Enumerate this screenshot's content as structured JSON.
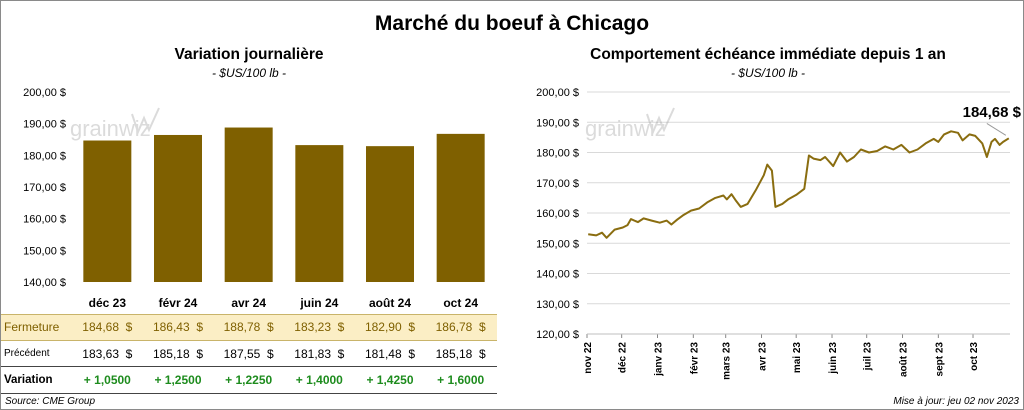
{
  "title": "Marché du boeuf à Chicago",
  "left": {
    "title": "Variation journalière",
    "unit": "- $US/100 lb -"
  },
  "right": {
    "title": "Comportement échéance immédiate depuis 1 an",
    "unit": "- $US/100 lb -",
    "last_label": "184,68 $"
  },
  "watermark": "grainwiz",
  "footer": {
    "source": "Source: CME Group",
    "updated": "Mise à jour: jeu 02 nov 2023"
  },
  "table": {
    "row_labels": [
      "Fermeture",
      "Précédent",
      "Variation"
    ],
    "fermeture": [
      "184,68",
      "186,43",
      "188,78",
      "183,23",
      "182,90",
      "186,78"
    ],
    "precedent": [
      "183,63",
      "185,18",
      "187,55",
      "181,83",
      "181,48",
      "185,18"
    ],
    "variation": [
      "+ 1,0500",
      "+ 1,2500",
      "+ 1,2250",
      "+ 1,4000",
      "+ 1,4250",
      "+ 1,6000"
    ],
    "currency": "$"
  },
  "colors": {
    "bar": "#7f6000",
    "line": "#8a6d10",
    "highlight_row": "#fbeec5",
    "positive": "#1e8c1e"
  },
  "chart_data": [
    {
      "type": "bar",
      "title": "Variation journalière",
      "categories": [
        "déc 23",
        "févr 24",
        "avr 24",
        "juin 24",
        "août 24",
        "oct 24"
      ],
      "values": [
        184.68,
        186.43,
        188.78,
        183.23,
        182.9,
        186.78
      ],
      "ylim": [
        140,
        200
      ],
      "yticks": [
        "140,00 $",
        "150,00 $",
        "160,00 $",
        "170,00 $",
        "180,00 $",
        "190,00 $",
        "200,00 $"
      ],
      "grid": false
    },
    {
      "type": "line",
      "title": "Comportement échéance immédiate depuis 1 an",
      "ylim": [
        120,
        200
      ],
      "yticks": [
        "120,00 $",
        "130,00 $",
        "140,00 $",
        "150,00 $",
        "160,00 $",
        "170,00 $",
        "180,00 $",
        "190,00 $",
        "200,00 $"
      ],
      "xticks": [
        "nov 22",
        "déc 22",
        "janv 23",
        "févr 23",
        "mars 23",
        "avr 23",
        "mai 23",
        "juin 23",
        "juil 23",
        "août 23",
        "sept 23",
        "oct 23"
      ],
      "grid": true,
      "series": [
        {
          "x": [
            "2022-11-02",
            "2022-11-09",
            "2022-11-14",
            "2022-11-18",
            "2022-11-25",
            "2022-12-02",
            "2022-12-06",
            "2022-12-09",
            "2022-12-15",
            "2022-12-20",
            "2022-12-27",
            "2023-01-03",
            "2023-01-09",
            "2023-01-13",
            "2023-01-18",
            "2023-01-23",
            "2023-01-30",
            "2023-02-06",
            "2023-02-13",
            "2023-02-20",
            "2023-02-27",
            "2023-03-02",
            "2023-03-06",
            "2023-03-10",
            "2023-03-14",
            "2023-03-20",
            "2023-03-27",
            "2023-04-03",
            "2023-04-06",
            "2023-04-10",
            "2023-04-13",
            "2023-04-19",
            "2023-04-24",
            "2023-05-01",
            "2023-05-08",
            "2023-05-12",
            "2023-05-16",
            "2023-05-22",
            "2023-05-26",
            "2023-06-02",
            "2023-06-08",
            "2023-06-14",
            "2023-06-20",
            "2023-06-26",
            "2023-07-03",
            "2023-07-10",
            "2023-07-17",
            "2023-07-24",
            "2023-07-31",
            "2023-08-07",
            "2023-08-14",
            "2023-08-21",
            "2023-08-28",
            "2023-09-01",
            "2023-09-06",
            "2023-09-12",
            "2023-09-18",
            "2023-09-22",
            "2023-09-28",
            "2023-10-03",
            "2023-10-09",
            "2023-10-13",
            "2023-10-17",
            "2023-10-20",
            "2023-10-24",
            "2023-10-27",
            "2023-11-01"
          ],
          "values": [
            153.0,
            152.6,
            153.5,
            151.8,
            154.5,
            155.2,
            156.0,
            158.0,
            157.0,
            158.2,
            157.5,
            156.8,
            157.5,
            156.2,
            157.8,
            159.2,
            160.8,
            161.5,
            163.5,
            165.0,
            165.8,
            164.5,
            166.2,
            164.0,
            162.0,
            163.0,
            167.5,
            172.5,
            176.0,
            174.0,
            162.0,
            163.0,
            164.5,
            166.0,
            168.0,
            179.0,
            178.0,
            177.5,
            178.5,
            175.5,
            180.0,
            177.0,
            178.5,
            181.0,
            180.0,
            180.5,
            182.0,
            181.0,
            182.5,
            180.0,
            181.0,
            183.0,
            184.5,
            183.5,
            186.0,
            187.0,
            186.5,
            184.0,
            186.0,
            185.5,
            183.0,
            178.5,
            183.5,
            184.5,
            182.5,
            183.5,
            184.68
          ]
        }
      ]
    }
  ]
}
